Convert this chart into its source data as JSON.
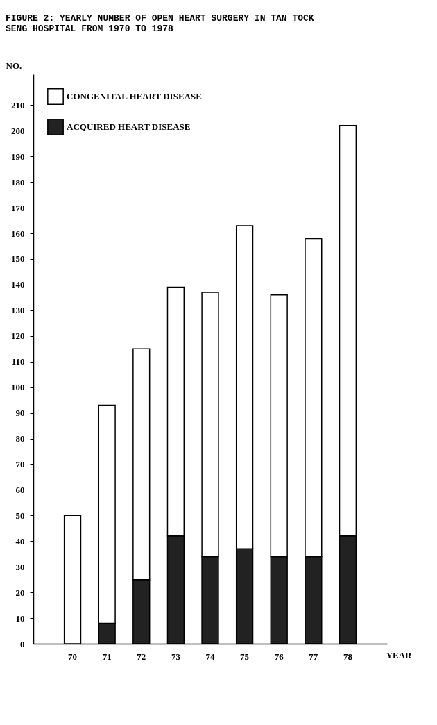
{
  "chart_data": {
    "type": "bar",
    "title": "FIGURE 2:  YEARLY NUMBER OF OPEN HEART SURGERY IN TAN TOCK SENG HOSPITAL FROM 1970 TO 1978",
    "xlabel": "YEAR",
    "ylabel": "NO.",
    "categories": [
      "70",
      "71",
      "72",
      "73",
      "74",
      "75",
      "76",
      "77",
      "78"
    ],
    "stacked": true,
    "series": [
      {
        "name": "ACQUIRED HEART DISEASE",
        "color": "#222222",
        "values": [
          0,
          8,
          25,
          42,
          34,
          37,
          34,
          34,
          42
        ]
      },
      {
        "name": "CONGENITAL HEART DISEASE",
        "color": "#ffffff",
        "values": [
          50,
          85,
          90,
          97,
          103,
          126,
          102,
          124,
          160
        ]
      }
    ],
    "ylim": [
      0,
      222
    ],
    "yticks": [
      0,
      10,
      20,
      30,
      40,
      50,
      60,
      70,
      80,
      90,
      100,
      110,
      120,
      130,
      140,
      150,
      160,
      170,
      180,
      190,
      200,
      210
    ],
    "grid": false,
    "legend": "top left"
  }
}
